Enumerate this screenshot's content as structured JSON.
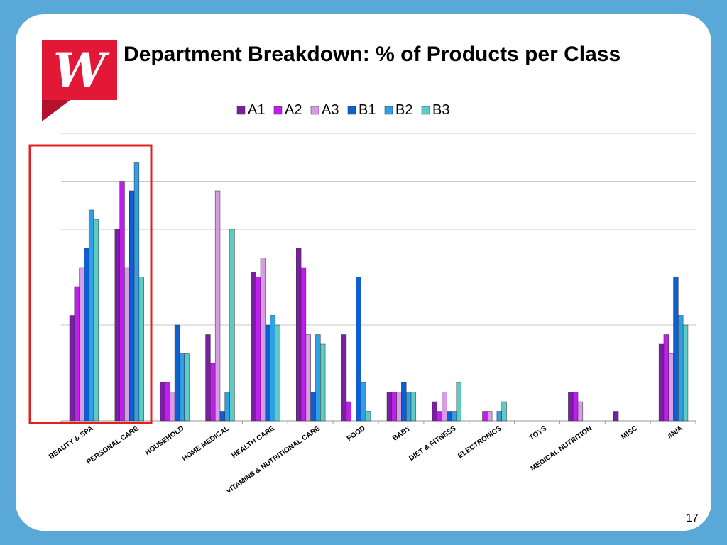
{
  "page": {
    "title": "Department Breakdown: % of Products per Class",
    "slide_number": "17",
    "logo_letter": "W"
  },
  "colors": {
    "background": "#5aa8d8",
    "highlight_box": "#e32020",
    "logo": "#e31837"
  },
  "chart_data": {
    "type": "bar",
    "title": "",
    "xlabel": "",
    "ylabel": "",
    "ylim": [
      0,
      30
    ],
    "y_ticks_shown": false,
    "grid": true,
    "legend": "top",
    "categories": [
      "BEAUTY & SPA",
      "PERSONAL CARE",
      "HOUSEHOLD",
      "HOME MEDICAL",
      "HEALTH CARE",
      "VITAMINS & NUTRITIONAL CARE",
      "FOOD",
      "BABY",
      "DIET & FITNESS",
      "ELECTRONICS",
      "TOYS",
      "MEDICAL NUTRITION",
      "MISC",
      "#N/A"
    ],
    "series": [
      {
        "name": "A1",
        "color": "#7b1fa2",
        "values": [
          11,
          20,
          4,
          9,
          15.5,
          18,
          9,
          3,
          2,
          0,
          0,
          3,
          1,
          8
        ]
      },
      {
        "name": "A2",
        "color": "#c21cf0",
        "values": [
          14,
          25,
          4,
          6,
          15,
          16,
          2,
          3,
          1,
          1,
          0,
          3,
          0,
          9
        ]
      },
      {
        "name": "A3",
        "color": "#d79be8",
        "values": [
          16,
          16,
          3,
          24,
          17,
          9,
          0,
          3,
          3,
          1,
          0,
          2,
          0,
          7
        ]
      },
      {
        "name": "B1",
        "color": "#0e5fcf",
        "values": [
          18,
          24,
          10,
          1,
          10,
          3,
          15,
          4,
          1,
          0,
          0,
          0,
          0,
          15
        ]
      },
      {
        "name": "B2",
        "color": "#2f9fe6",
        "values": [
          22,
          27,
          7,
          3,
          11,
          9,
          4,
          3,
          1,
          1,
          0,
          0,
          0,
          11
        ]
      },
      {
        "name": "B3",
        "color": "#5ccdc4",
        "values": [
          21,
          15,
          7,
          20,
          10,
          8,
          1,
          3,
          4,
          2,
          0,
          0,
          0,
          10
        ]
      }
    ],
    "highlighted_category": "BEAUTY & SPA"
  }
}
